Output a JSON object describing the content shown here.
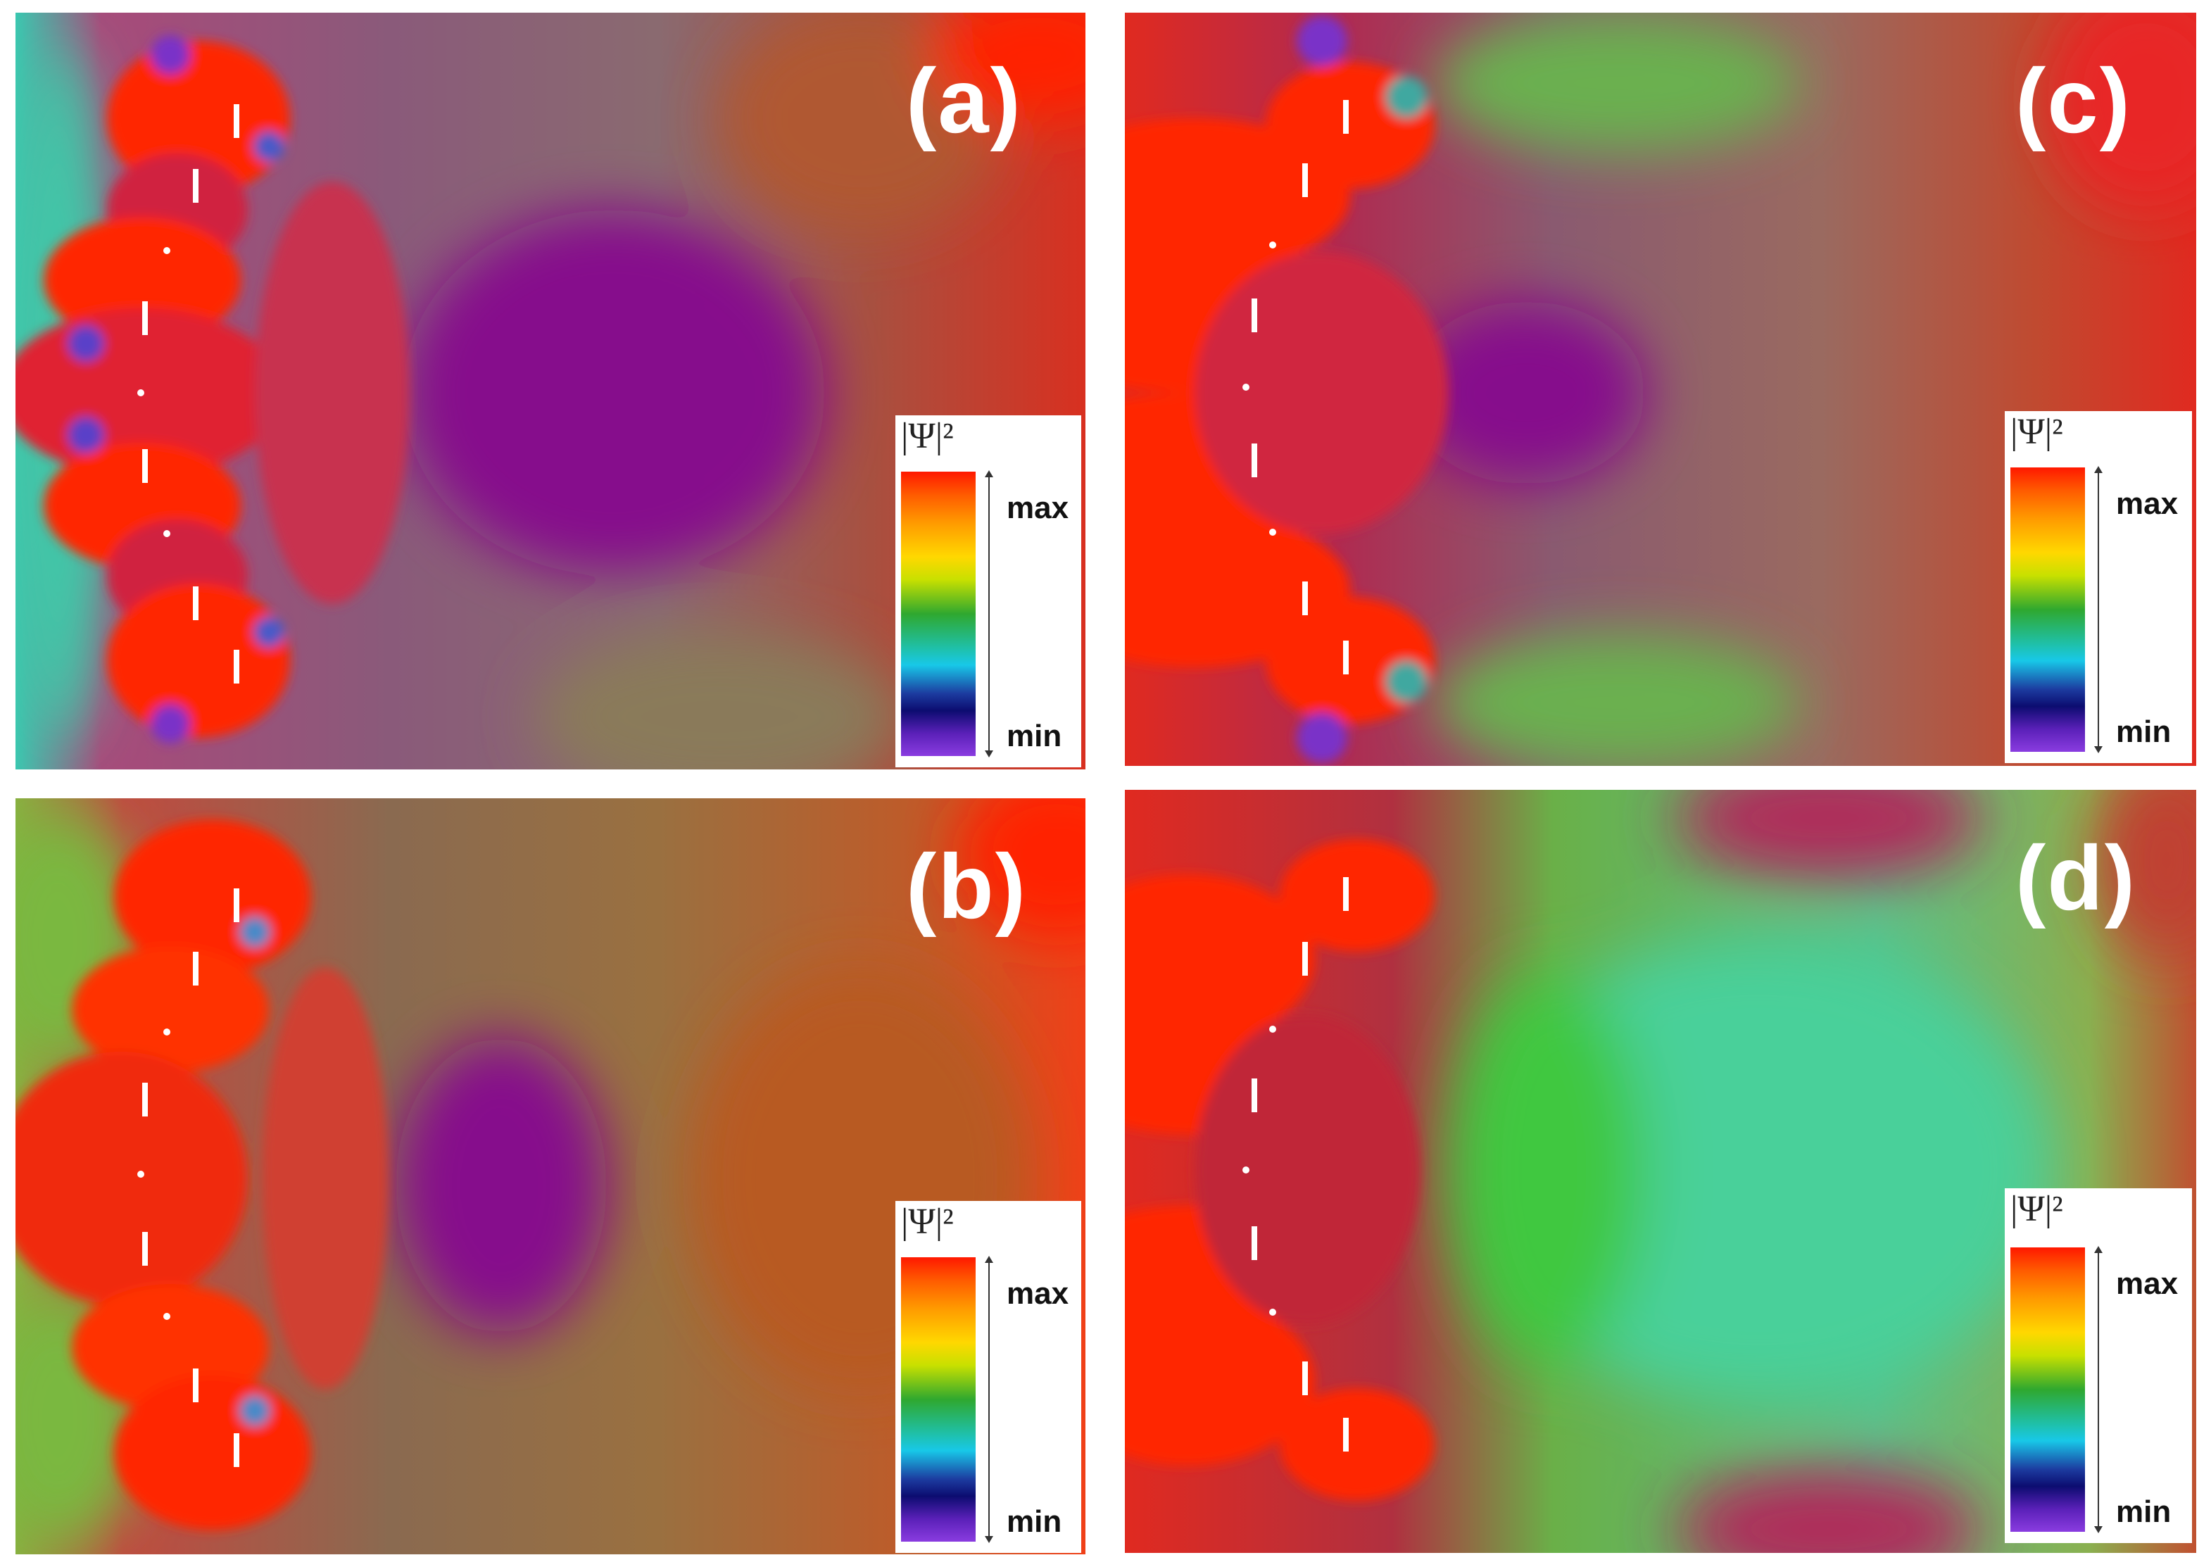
{
  "panels": [
    {
      "id": "a",
      "label": "(a)",
      "scene": "field-pattern-a",
      "legend": {
        "title": "|Ψ|²",
        "max": "max",
        "min": "min"
      }
    },
    {
      "id": "b",
      "label": "(b)",
      "scene": "field-pattern-b",
      "legend": {
        "title": "|Ψ|²",
        "max": "max",
        "min": "min"
      }
    },
    {
      "id": "c",
      "label": "(c)",
      "scene": "field-pattern-c",
      "legend": {
        "title": "|Ψ|²",
        "max": "max",
        "min": "min"
      }
    },
    {
      "id": "d",
      "label": "(d)",
      "scene": "field-pattern-d",
      "legend": {
        "title": "|Ψ|²",
        "max": "max",
        "min": "min"
      }
    }
  ],
  "colors": {
    "red": "#ff1e00",
    "magenta": "#b01a5a",
    "purple": "#860a8c",
    "green": "#3cc83c",
    "teal": "#3ad0a0",
    "orange": "#d6601c"
  }
}
